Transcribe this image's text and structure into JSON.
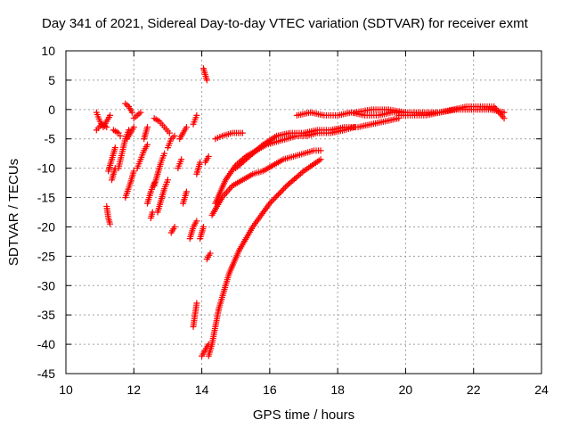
{
  "chart_data": {
    "type": "scatter",
    "title": "Day 341 of 2021, Sidereal Day-to-day VTEC variation (SDTVAR) for receiver exmt",
    "xlabel": "GPS time / hours",
    "ylabel": "SDTVAR / TECUs",
    "xlim": [
      10,
      24
    ],
    "ylim": [
      -45,
      10
    ],
    "xticks": [
      "10",
      "12",
      "14",
      "16",
      "18",
      "20",
      "22",
      "24"
    ],
    "yticks": [
      "10",
      "5",
      "0",
      "-5",
      "-10",
      "-15",
      "-20",
      "-25",
      "-30",
      "-35",
      "-40",
      "-45"
    ],
    "grid": true,
    "marker": "+",
    "color": "#ff0000",
    "series": [
      {
        "name": "s1",
        "x": [
          10.9,
          11.0,
          11.1,
          11.2,
          11.3
        ],
        "y": [
          -0.5,
          -2.0,
          -3.0,
          -2.0,
          -1.0
        ]
      },
      {
        "name": "s2",
        "x": [
          10.9,
          11.05,
          11.2
        ],
        "y": [
          -3.5,
          -2.5,
          -3.0
        ]
      },
      {
        "name": "s3",
        "x": [
          11.2,
          11.25,
          11.3
        ],
        "y": [
          -16.5,
          -18.5,
          -19.5
        ]
      },
      {
        "name": "s4",
        "x": [
          11.25,
          11.35,
          11.45
        ],
        "y": [
          -10.5,
          -8.5,
          -6.5
        ]
      },
      {
        "name": "s5",
        "x": [
          11.35,
          11.45
        ],
        "y": [
          -12.0,
          -10.0
        ]
      },
      {
        "name": "s6",
        "x": [
          11.4,
          11.55,
          11.6
        ],
        "y": [
          -3.5,
          -4.0,
          -4.5
        ]
      },
      {
        "name": "s7",
        "x": [
          11.55,
          11.65,
          11.75,
          11.85
        ],
        "y": [
          -10.0,
          -7.5,
          -5.0,
          -3.5
        ]
      },
      {
        "name": "s8",
        "x": [
          11.75,
          11.9,
          12.0
        ],
        "y": [
          -15.0,
          -12.5,
          -10.5
        ]
      },
      {
        "name": "s9",
        "x": [
          11.8,
          11.9,
          12.0
        ],
        "y": [
          -5.0,
          -4.0,
          -3.0
        ]
      },
      {
        "name": "s10",
        "x": [
          11.75,
          11.85,
          11.95
        ],
        "y": [
          1.0,
          0.5,
          -0.5
        ]
      },
      {
        "name": "s11",
        "x": [
          12.0,
          12.1,
          12.2
        ],
        "y": [
          -1.5,
          -1.0,
          -0.5
        ]
      },
      {
        "name": "s12",
        "x": [
          12.1,
          12.2,
          12.3,
          12.4
        ],
        "y": [
          -10.0,
          -8.5,
          -7.0,
          -6.0
        ]
      },
      {
        "name": "s13",
        "x": [
          12.3,
          12.35,
          12.4
        ],
        "y": [
          -5.0,
          -4.0,
          -3.0
        ]
      },
      {
        "name": "s14",
        "x": [
          12.4,
          12.5,
          12.6
        ],
        "y": [
          -16.0,
          -14.0,
          -12.5
        ]
      },
      {
        "name": "s15",
        "x": [
          12.5,
          12.55
        ],
        "y": [
          -18.5,
          -17.5
        ]
      },
      {
        "name": "s16",
        "x": [
          12.6,
          12.7,
          12.8,
          12.9
        ],
        "y": [
          -13.0,
          -11.0,
          -9.0,
          -7.5
        ]
      },
      {
        "name": "s17",
        "x": [
          12.7,
          12.8,
          12.9,
          13.0
        ],
        "y": [
          -17.5,
          -15.5,
          -13.5,
          -12.0
        ]
      },
      {
        "name": "s18",
        "x": [
          12.6,
          12.75,
          12.9,
          13.05
        ],
        "y": [
          -1.5,
          -2.0,
          -3.0,
          -4.0
        ]
      },
      {
        "name": "s19",
        "x": [
          13.0,
          13.1,
          13.2
        ],
        "y": [
          -6.5,
          -5.0,
          -4.5
        ]
      },
      {
        "name": "s20",
        "x": [
          13.1,
          13.2
        ],
        "y": [
          -21.0,
          -20.0
        ]
      },
      {
        "name": "s21",
        "x": [
          13.3,
          13.4
        ],
        "y": [
          -10.0,
          -8.5
        ]
      },
      {
        "name": "s22",
        "x": [
          13.35,
          13.45,
          13.55
        ],
        "y": [
          -5.0,
          -4.0,
          -3.0
        ]
      },
      {
        "name": "s23",
        "x": [
          13.45,
          13.55
        ],
        "y": [
          -16.0,
          -14.0
        ]
      },
      {
        "name": "s24",
        "x": [
          13.65,
          13.75,
          13.85
        ],
        "y": [
          -22.0,
          -20.0,
          -19.0
        ]
      },
      {
        "name": "s25",
        "x": [
          13.75,
          13.85
        ],
        "y": [
          -2.5,
          -1.0
        ]
      },
      {
        "name": "s26",
        "x": [
          13.75,
          13.8,
          13.85
        ],
        "y": [
          -37.0,
          -35.0,
          -33.0
        ]
      },
      {
        "name": "s27",
        "x": [
          13.85,
          13.95
        ],
        "y": [
          -11.0,
          -9.0
        ]
      },
      {
        "name": "s28",
        "x": [
          13.95,
          14.05
        ],
        "y": [
          -22.0,
          -20.0
        ]
      },
      {
        "name": "s29",
        "x": [
          14.0,
          14.1,
          14.2
        ],
        "y": [
          -42.0,
          -41.0,
          -40.0
        ]
      },
      {
        "name": "s30",
        "x": [
          14.15,
          14.25
        ],
        "y": [
          -25.5,
          -24.5
        ]
      },
      {
        "name": "s31",
        "x": [
          14.05,
          14.15
        ],
        "y": [
          7.0,
          5.0
        ]
      },
      {
        "name": "s32",
        "x": [
          14.1,
          14.2
        ],
        "y": [
          -9.0,
          -8.0
        ]
      },
      {
        "name": "s33",
        "x": [
          14.2,
          14.3,
          14.4,
          14.5
        ],
        "y": [
          -42.0,
          -40.0,
          -37.0,
          -34.0
        ]
      },
      {
        "name": "s34",
        "x": [
          14.5,
          14.8,
          15.1,
          15.5,
          16.0,
          16.5,
          17.0,
          17.5
        ],
        "y": [
          -34.0,
          -28.0,
          -24.0,
          -20.0,
          -16.0,
          -13.0,
          -10.5,
          -8.5
        ]
      },
      {
        "name": "s35",
        "x": [
          14.3,
          14.6,
          14.9,
          15.2,
          15.5,
          15.8,
          16.1,
          16.4,
          16.7,
          17.0,
          17.3,
          17.5
        ],
        "y": [
          -18.0,
          -15.0,
          -13.0,
          -12.0,
          -11.0,
          -10.5,
          -9.5,
          -8.5,
          -8.0,
          -7.5,
          -7.0,
          -7.0
        ]
      },
      {
        "name": "s36",
        "x": [
          14.4,
          14.7,
          15.0,
          15.3,
          15.6,
          15.9,
          16.2,
          16.5,
          16.8,
          17.1,
          17.4,
          17.8,
          18.2,
          18.5
        ],
        "y": [
          -16.0,
          -12.0,
          -9.5,
          -8.0,
          -7.0,
          -6.0,
          -5.5,
          -5.0,
          -4.5,
          -4.5,
          -4.0,
          -4.0,
          -3.5,
          -3.0
        ]
      },
      {
        "name": "s37",
        "x": [
          14.4,
          14.6,
          14.9,
          15.2
        ],
        "y": [
          -5.0,
          -4.5,
          -4.0,
          -4.0
        ]
      },
      {
        "name": "s38",
        "x": [
          15.0,
          15.4,
          15.8,
          16.2,
          16.6,
          17.0,
          17.4,
          17.8,
          18.2,
          18.6,
          19.0,
          19.4,
          19.8
        ],
        "y": [
          -10.0,
          -8.0,
          -6.0,
          -4.5,
          -4.0,
          -4.0,
          -3.5,
          -3.5,
          -3.0,
          -3.0,
          -2.5,
          -2.0,
          -1.5
        ]
      },
      {
        "name": "s39",
        "x": [
          16.8,
          17.2,
          17.6,
          18.0,
          18.4,
          18.8,
          19.2,
          19.6,
          20.0
        ],
        "y": [
          -1.0,
          -0.5,
          -1.0,
          -1.0,
          -0.5,
          -1.0,
          -1.0,
          -0.5,
          -0.5
        ]
      },
      {
        "name": "s40",
        "x": [
          18.5,
          19.0,
          19.5,
          20.0,
          20.5,
          21.0,
          21.5,
          22.0,
          22.5,
          22.9
        ],
        "y": [
          -0.5,
          0.0,
          0.0,
          -0.5,
          -0.5,
          -0.5,
          0.0,
          0.0,
          0.0,
          -0.5
        ]
      },
      {
        "name": "s41",
        "x": [
          19.8,
          20.2,
          20.6,
          21.0,
          21.4,
          21.8,
          22.2,
          22.6,
          22.9
        ],
        "y": [
          -1.0,
          -1.0,
          -1.0,
          -0.5,
          0.0,
          0.5,
          0.5,
          0.5,
          -1.5
        ]
      }
    ]
  }
}
